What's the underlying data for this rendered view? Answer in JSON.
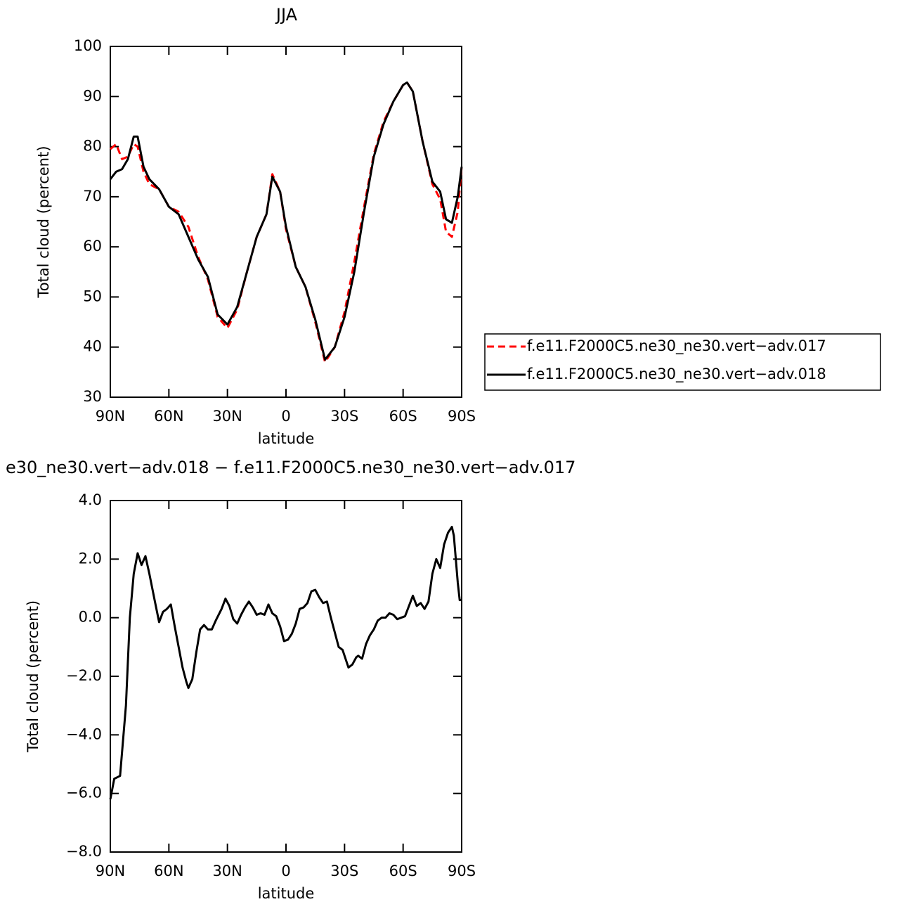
{
  "chart_data": [
    {
      "type": "line",
      "title": "JJA",
      "xlabel": "latitude",
      "ylabel": "Total cloud (percent)",
      "x": [
        90,
        87,
        84,
        81,
        78,
        76,
        73,
        70,
        65,
        60,
        55,
        50,
        45,
        40,
        35,
        30,
        25,
        20,
        15,
        10,
        7,
        3,
        0,
        -5,
        -10,
        -15,
        -20,
        -25,
        -30,
        -35,
        -40,
        -45,
        -50,
        -55,
        -60,
        -62,
        -65,
        -70,
        -75,
        -79,
        -82,
        -85,
        -88,
        -90
      ],
      "series": [
        {
          "name": "f.e11.F2000C5.ne30_ne30.vert−adv.017",
          "color": "#ff0000",
          "dashed": true,
          "values": [
            79.5,
            80.5,
            77.5,
            78,
            80.5,
            80,
            75,
            72.5,
            71.5,
            68,
            67,
            64,
            58,
            53.5,
            46,
            43.8,
            47.5,
            55,
            62,
            66.5,
            74.5,
            71,
            63.5,
            56,
            52,
            45,
            37,
            40,
            47,
            57,
            68,
            78.5,
            85,
            89,
            92.3,
            92.8,
            91,
            81,
            72.5,
            69.5,
            63,
            62,
            67,
            76
          ]
        },
        {
          "name": "f.e11.F2000C5.ne30_ne30.vert−adv.018",
          "color": "#000000",
          "dashed": false,
          "values": [
            73.5,
            75,
            75.5,
            77.5,
            82,
            82,
            76,
            73.5,
            71.5,
            68,
            66.5,
            62,
            57.5,
            54,
            46.5,
            44.5,
            48,
            55,
            62,
            66.5,
            74,
            71,
            64,
            56,
            52,
            45.5,
            37.5,
            40,
            46,
            55,
            67,
            78,
            84.5,
            89,
            92.3,
            92.8,
            91,
            81,
            73,
            71,
            65.5,
            64.8,
            70,
            76
          ]
        }
      ],
      "xlim": [
        90,
        -90
      ],
      "xticks": [
        {
          "value": 90,
          "label": "90N"
        },
        {
          "value": 60,
          "label": "60N"
        },
        {
          "value": 30,
          "label": "30N"
        },
        0,
        {
          "value": -30,
          "label": "30S"
        },
        {
          "value": -60,
          "label": "60S"
        },
        {
          "value": -90,
          "label": "90S"
        }
      ],
      "ylim": [
        30,
        100
      ],
      "yticks": [
        30,
        40,
        50,
        60,
        70,
        80,
        90,
        100
      ],
      "legend": "right"
    },
    {
      "type": "line",
      "title": "e30_ne30.vert−adv.018 − f.e11.F2000C5.ne30_ne30.vert−adv.017",
      "xlabel": "latitude",
      "ylabel": "Total cloud (percent)",
      "x": [
        90,
        88,
        85,
        82,
        80,
        78,
        76,
        74,
        72,
        70,
        67,
        65,
        63,
        61,
        59,
        57,
        55,
        53,
        51,
        50,
        48,
        46,
        44,
        42,
        40,
        38,
        36,
        33,
        31,
        29,
        27,
        25,
        23,
        21,
        19,
        17,
        15,
        13,
        11,
        9,
        7,
        5,
        3,
        1,
        -1,
        -3,
        -5,
        -7,
        -9,
        -11,
        -13,
        -15,
        -17,
        -19,
        -21,
        -23,
        -25,
        -27,
        -29,
        -31,
        -32,
        -34,
        -36,
        -37,
        -39,
        -41,
        -43,
        -45,
        -47,
        -49,
        -51,
        -53,
        -55,
        -57,
        -59,
        -61,
        -63,
        -65,
        -67,
        -69,
        -71,
        -73,
        -75,
        -77,
        -79,
        -81,
        -83,
        -85,
        -86,
        -88,
        -89,
        -90
      ],
      "series": [
        {
          "color": "#000000",
          "dashed": false,
          "values": [
            -6.2,
            -5.5,
            -5.4,
            -3.0,
            0,
            1.5,
            2.2,
            1.8,
            2.1,
            1.5,
            0.5,
            -0.15,
            0.2,
            0.3,
            0.45,
            -0.3,
            -1.0,
            -1.7,
            -2.2,
            -2.4,
            -2.1,
            -1.2,
            -0.4,
            -0.25,
            -0.4,
            -0.4,
            -0.1,
            0.3,
            0.65,
            0.4,
            -0.05,
            -0.2,
            0.1,
            0.35,
            0.55,
            0.35,
            0.1,
            0.15,
            0.1,
            0.45,
            0.15,
            0.05,
            -0.3,
            -0.8,
            -0.75,
            -0.55,
            -0.2,
            0.3,
            0.35,
            0.5,
            0.9,
            0.95,
            0.7,
            0.5,
            0.55,
            0.0,
            -0.5,
            -1.0,
            -1.1,
            -1.5,
            -1.7,
            -1.6,
            -1.35,
            -1.3,
            -1.4,
            -0.9,
            -0.6,
            -0.4,
            -0.1,
            0.0,
            0.0,
            0.15,
            0.1,
            -0.05,
            0.0,
            0.05,
            0.4,
            0.75,
            0.4,
            0.5,
            0.3,
            0.55,
            1.5,
            2.0,
            1.7,
            2.5,
            2.9,
            3.1,
            2.8,
            1.2,
            0.6,
            0.6
          ]
        }
      ],
      "xlim": [
        90,
        -90
      ],
      "xticks": [
        {
          "value": 90,
          "label": "90N"
        },
        {
          "value": 60,
          "label": "60N"
        },
        {
          "value": 30,
          "label": "30N"
        },
        0,
        {
          "value": -30,
          "label": "30S"
        },
        {
          "value": -60,
          "label": "60S"
        },
        {
          "value": -90,
          "label": "90S"
        }
      ],
      "ylim": [
        -8,
        4
      ],
      "yticks": [
        {
          "value": -8,
          "label": "−8.0"
        },
        {
          "value": -6,
          "label": "−6.0"
        },
        {
          "value": -4,
          "label": "−4.0"
        },
        {
          "value": -2,
          "label": "−2.0"
        },
        {
          "value": 0,
          "label": "0.0"
        },
        {
          "value": 2,
          "label": "2.0"
        },
        {
          "value": 4,
          "label": "4.0"
        }
      ]
    }
  ]
}
